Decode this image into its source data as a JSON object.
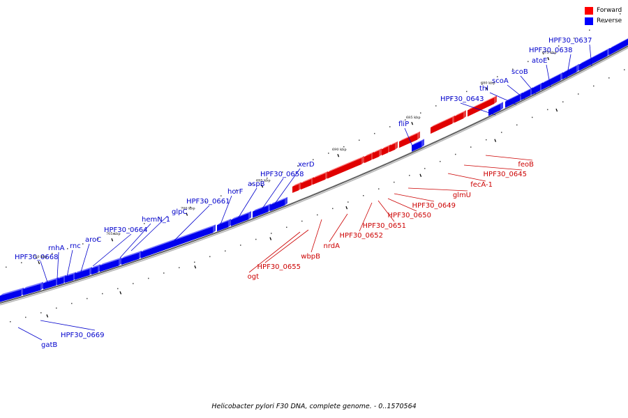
{
  "caption": "Helicobacter pylori F30 DNA, complete genome. - 0..1570564",
  "legend": [
    {
      "label": "Forward",
      "color": "#ff0000"
    },
    {
      "label": "Reverse",
      "color": "#0000ff"
    }
  ],
  "colors": {
    "forward": "#e00000",
    "reverse": "#0000ee",
    "forward_label": "#cc0000",
    "reverse_label": "#0000cc",
    "backbone": "#808080"
  },
  "ticks": [
    "675 kbp",
    "680 kbp",
    "685 kbp",
    "690 kbp",
    "695 kbp",
    "700 kbp",
    "705 kbp",
    "710 kbp"
  ],
  "forward_genes": [
    "feoB",
    "HPF30_0645",
    "fecA-1",
    "glmU",
    "HPF30_0649",
    "HPF30_0650",
    "HPF30_0651",
    "HPF30_0652",
    "nrdA",
    "wbpB",
    "HPF30_0655",
    "ogt"
  ],
  "reverse_genes": [
    "HPF30_0637",
    "HPF30_0638",
    "atoE",
    "scoB",
    "scoA",
    "thl",
    "HPF30_0643",
    "fliP",
    "xerD",
    "HPF30_0658",
    "aspB",
    "horF",
    "HPF30_0661",
    "glpC",
    "hemN_1",
    "HPF30_0664",
    "aroC",
    "rnc",
    "rnhA",
    "HPF30_0668",
    "HPF30_0669",
    "gatB"
  ]
}
